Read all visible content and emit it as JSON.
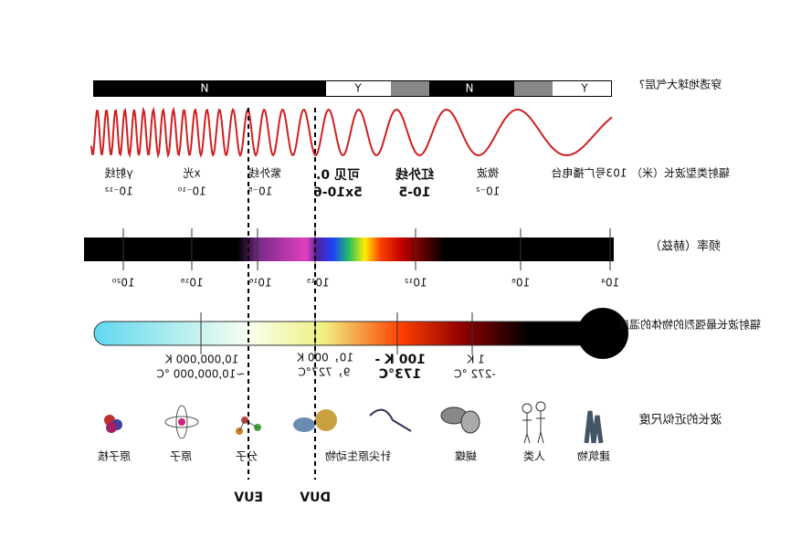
{
  "header": {
    "title": "穿透地球大气层?"
  },
  "atmosphere": {
    "segments": [
      "N",
      "Y",
      "N",
      "Y"
    ]
  },
  "rows": {
    "type": "辐射类型波长（米）",
    "frequency": "频率（赫兹）",
    "temperature": "辐射波长最强烈的物体的温度",
    "scale": "波长的近似尺度"
  },
  "types": [
    {
      "name": "103号广播电台",
      "wavelength": ""
    },
    {
      "name": "微波",
      "wavelength": "10⁻²"
    },
    {
      "name": "红外线",
      "wavelength": "10-5"
    },
    {
      "name": "可见 0.",
      "wavelength": "5x10-6"
    },
    {
      "name": "紫外线",
      "wavelength": "10⁻⁸"
    },
    {
      "name": "x光",
      "wavelength": "10⁻¹⁰"
    },
    {
      "name": "γ射线",
      "wavelength": "10⁻¹²"
    }
  ],
  "frequencies": [
    "10⁴",
    "10⁸",
    "10¹²",
    "10¹⁵",
    "10¹⁶",
    "10¹⁸",
    "10²⁰"
  ],
  "temperatures": [
    {
      "k": "1 K",
      "c": "-272 °C"
    },
    {
      "k": "100 K -",
      "c": "173°C"
    },
    {
      "k": "10，000 K",
      "c": "9，727°C"
    },
    {
      "k": "10,000,000 K",
      "c": "~10,000,000 °C"
    }
  ],
  "objects": [
    "建筑物",
    "人类",
    "蝴蝶",
    "针尖原生动物",
    "分子",
    "原子",
    "原子核"
  ],
  "markers": [
    "EUV",
    "DUV"
  ]
}
